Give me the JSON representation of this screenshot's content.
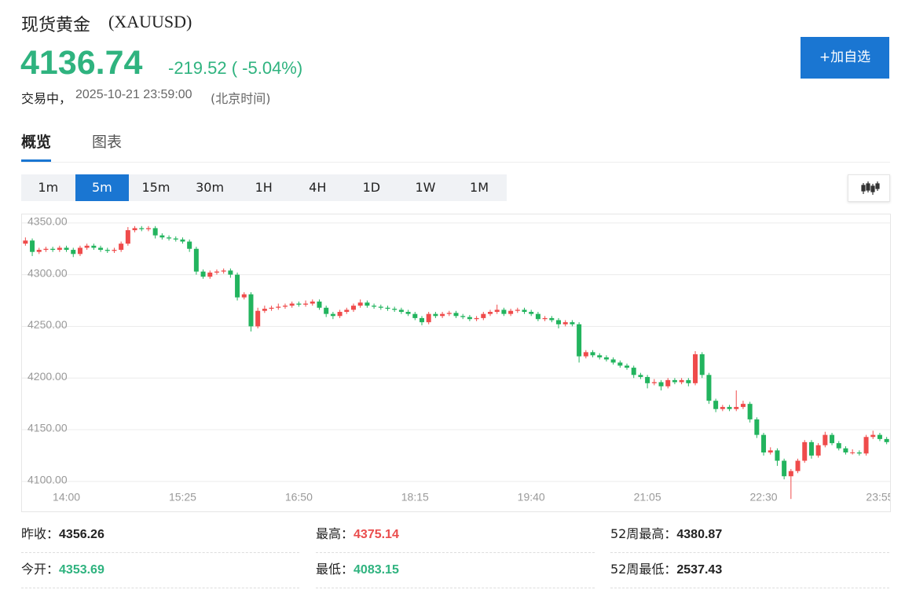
{
  "header": {
    "name": "现货黄金",
    "symbol": "(XAUUSD)",
    "price": "4136.74",
    "change": "-219.52 ( -5.04%)",
    "status": "交易中，",
    "time": "2025-10-21 23:59:00",
    "timezone": "(北京时间)",
    "button": "+加自选"
  },
  "tabs": [
    "概览",
    "图表"
  ],
  "intervals": [
    "1m",
    "5m",
    "15m",
    "30m",
    "1H",
    "4H",
    "1D",
    "1W",
    "1M"
  ],
  "stats": [
    {
      "label": "昨收：",
      "value": "4356.26",
      "color": "#222222"
    },
    {
      "label": "最高：",
      "value": "4375.14",
      "color": "#ea4d4d"
    },
    {
      "label": "52周最高：",
      "value": "4380.87",
      "color": "#222222"
    },
    {
      "label": "今开：",
      "value": "4353.69",
      "color": "#2fb37f"
    },
    {
      "label": "最低：",
      "value": "4083.15",
      "color": "#2fb37f"
    },
    {
      "label": "52周最低：",
      "value": "2537.43",
      "color": "#222222"
    }
  ],
  "chart_data": {
    "type": "candlestick",
    "up_color": "#ef4b4b",
    "down_color": "#22b45e",
    "grid": true,
    "ylim": [
      4359,
      4071
    ],
    "yticks": [
      {
        "value": 4350,
        "label": "4350.00"
      },
      {
        "value": 4300,
        "label": "4300.00"
      },
      {
        "value": 4250,
        "label": "4250.00"
      },
      {
        "value": 4200,
        "label": "4200.00"
      },
      {
        "value": 4150,
        "label": "4150.00"
      },
      {
        "value": 4100,
        "label": "4100.00"
      }
    ],
    "categories": [
      null,
      null,
      null,
      null,
      null,
      null,
      "14:00",
      null,
      null,
      null,
      null,
      null,
      null,
      null,
      null,
      null,
      null,
      null,
      null,
      null,
      null,
      null,
      null,
      "15:25",
      null,
      null,
      null,
      null,
      null,
      null,
      null,
      null,
      null,
      null,
      null,
      null,
      null,
      null,
      null,
      null,
      "16:50",
      null,
      null,
      null,
      null,
      null,
      null,
      null,
      null,
      null,
      null,
      null,
      null,
      null,
      null,
      null,
      null,
      "18:15",
      null,
      null,
      null,
      null,
      null,
      null,
      null,
      null,
      null,
      null,
      null,
      null,
      null,
      null,
      null,
      null,
      "19:40",
      null,
      null,
      null,
      null,
      null,
      null,
      null,
      null,
      null,
      null,
      null,
      null,
      null,
      null,
      null,
      null,
      "21:05",
      null,
      null,
      null,
      null,
      null,
      null,
      null,
      null,
      null,
      null,
      null,
      null,
      null,
      null,
      null,
      null,
      "22:30",
      null,
      null,
      null,
      null,
      null,
      null,
      null,
      null,
      null,
      null,
      null,
      null,
      null,
      null,
      null,
      null,
      "23:55",
      null
    ],
    "ohlc": [
      [
        4330,
        4336,
        4328,
        4333
      ],
      [
        4333,
        4335,
        4318,
        4322
      ],
      [
        4322,
        4326,
        4320,
        4324
      ],
      [
        4324,
        4327,
        4322,
        4325
      ],
      [
        4325,
        4327,
        4322,
        4324
      ],
      [
        4324,
        4328,
        4322,
        4326
      ],
      [
        4326,
        4328,
        4322,
        4324
      ],
      [
        4324,
        4326,
        4317,
        4320
      ],
      [
        4320,
        4328,
        4318,
        4326
      ],
      [
        4326,
        4330,
        4324,
        4328
      ],
      [
        4328,
        4330,
        4324,
        4326
      ],
      [
        4326,
        4328,
        4322,
        4324
      ],
      [
        4324,
        4326,
        4321,
        4323
      ],
      [
        4323,
        4326,
        4321,
        4324
      ],
      [
        4324,
        4332,
        4322,
        4330
      ],
      [
        4330,
        4346,
        4328,
        4343
      ],
      [
        4343,
        4347,
        4341,
        4345
      ],
      [
        4345,
        4347,
        4342,
        4344
      ],
      [
        4344,
        4347,
        4342,
        4345
      ],
      [
        4345,
        4347,
        4335,
        4338
      ],
      [
        4338,
        4340,
        4334,
        4336
      ],
      [
        4336,
        4338,
        4333,
        4335
      ],
      [
        4335,
        4337,
        4332,
        4334
      ],
      [
        4334,
        4336,
        4330,
        4332
      ],
      [
        4332,
        4334,
        4322,
        4325
      ],
      [
        4325,
        4327,
        4300,
        4303
      ],
      [
        4303,
        4305,
        4296,
        4298
      ],
      [
        4298,
        4304,
        4296,
        4302
      ],
      [
        4302,
        4305,
        4300,
        4303
      ],
      [
        4303,
        4306,
        4301,
        4304
      ],
      [
        4304,
        4306,
        4297,
        4300
      ],
      [
        4300,
        4302,
        4275,
        4278
      ],
      [
        4278,
        4283,
        4276,
        4281
      ],
      [
        4281,
        4283,
        4245,
        4250
      ],
      [
        4250,
        4268,
        4248,
        4265
      ],
      [
        4265,
        4270,
        4263,
        4267
      ],
      [
        4267,
        4270,
        4265,
        4268
      ],
      [
        4268,
        4272,
        4266,
        4269
      ],
      [
        4269,
        4272,
        4267,
        4270
      ],
      [
        4270,
        4274,
        4268,
        4272
      ],
      [
        4272,
        4274,
        4269,
        4271
      ],
      [
        4271,
        4275,
        4269,
        4272
      ],
      [
        4272,
        4276,
        4270,
        4274
      ],
      [
        4274,
        4276,
        4266,
        4268
      ],
      [
        4268,
        4270,
        4259,
        4262
      ],
      [
        4262,
        4264,
        4257,
        4260
      ],
      [
        4260,
        4266,
        4258,
        4264
      ],
      [
        4264,
        4268,
        4262,
        4266
      ],
      [
        4266,
        4272,
        4264,
        4270
      ],
      [
        4270,
        4276,
        4268,
        4273
      ],
      [
        4273,
        4275,
        4268,
        4270
      ],
      [
        4270,
        4272,
        4267,
        4269
      ],
      [
        4269,
        4271,
        4266,
        4268
      ],
      [
        4268,
        4270,
        4265,
        4267
      ],
      [
        4267,
        4269,
        4264,
        4266
      ],
      [
        4266,
        4268,
        4262,
        4264
      ],
      [
        4264,
        4266,
        4260,
        4262
      ],
      [
        4262,
        4264,
        4256,
        4258
      ],
      [
        4258,
        4260,
        4251,
        4254
      ],
      [
        4254,
        4264,
        4252,
        4262
      ],
      [
        4262,
        4264,
        4258,
        4260
      ],
      [
        4260,
        4264,
        4258,
        4262
      ],
      [
        4262,
        4265,
        4260,
        4263
      ],
      [
        4263,
        4265,
        4258,
        4260
      ],
      [
        4260,
        4262,
        4257,
        4259
      ],
      [
        4259,
        4261,
        4255,
        4257
      ],
      [
        4257,
        4260,
        4255,
        4258
      ],
      [
        4258,
        4264,
        4256,
        4262
      ],
      [
        4262,
        4266,
        4260,
        4264
      ],
      [
        4264,
        4271,
        4262,
        4266
      ],
      [
        4266,
        4268,
        4260,
        4262
      ],
      [
        4262,
        4267,
        4260,
        4265
      ],
      [
        4265,
        4268,
        4263,
        4266
      ],
      [
        4266,
        4268,
        4262,
        4264
      ],
      [
        4264,
        4266,
        4260,
        4262
      ],
      [
        4262,
        4264,
        4255,
        4257
      ],
      [
        4257,
        4260,
        4255,
        4258
      ],
      [
        4258,
        4260,
        4254,
        4256
      ],
      [
        4256,
        4258,
        4248,
        4252
      ],
      [
        4252,
        4256,
        4250,
        4254
      ],
      [
        4254,
        4256,
        4250,
        4252
      ],
      [
        4252,
        4254,
        4215,
        4221
      ],
      [
        4221,
        4227,
        4219,
        4225
      ],
      [
        4225,
        4227,
        4220,
        4222
      ],
      [
        4222,
        4224,
        4218,
        4220
      ],
      [
        4220,
        4222,
        4216,
        4218
      ],
      [
        4218,
        4220,
        4213,
        4215
      ],
      [
        4215,
        4217,
        4210,
        4212
      ],
      [
        4212,
        4214,
        4208,
        4210
      ],
      [
        4210,
        4212,
        4200,
        4203
      ],
      [
        4203,
        4205,
        4199,
        4201
      ],
      [
        4201,
        4203,
        4190,
        4195
      ],
      [
        4195,
        4199,
        4193,
        4196
      ],
      [
        4196,
        4198,
        4188,
        4192
      ],
      [
        4192,
        4200,
        4190,
        4198
      ],
      [
        4198,
        4200,
        4194,
        4196
      ],
      [
        4196,
        4200,
        4194,
        4198
      ],
      [
        4198,
        4200,
        4192,
        4195
      ],
      [
        4195,
        4226,
        4193,
        4223
      ],
      [
        4223,
        4225,
        4200,
        4203
      ],
      [
        4203,
        4205,
        4175,
        4178
      ],
      [
        4178,
        4180,
        4167,
        4170
      ],
      [
        4170,
        4174,
        4168,
        4172
      ],
      [
        4172,
        4174,
        4168,
        4170
      ],
      [
        4170,
        4188,
        4168,
        4172
      ],
      [
        4172,
        4178,
        4170,
        4175
      ],
      [
        4175,
        4177,
        4157,
        4160
      ],
      [
        4160,
        4162,
        4142,
        4145
      ],
      [
        4145,
        4147,
        4125,
        4128
      ],
      [
        4128,
        4133,
        4126,
        4130
      ],
      [
        4130,
        4132,
        4115,
        4120
      ],
      [
        4120,
        4122,
        4102,
        4105
      ],
      [
        4105,
        4112,
        4083,
        4110
      ],
      [
        4110,
        4122,
        4108,
        4120
      ],
      [
        4120,
        4140,
        4118,
        4138
      ],
      [
        4138,
        4140,
        4122,
        4125
      ],
      [
        4125,
        4137,
        4123,
        4135
      ],
      [
        4135,
        4148,
        4133,
        4145
      ],
      [
        4145,
        4147,
        4135,
        4137
      ],
      [
        4137,
        4139,
        4130,
        4132
      ],
      [
        4132,
        4134,
        4126,
        4128
      ],
      [
        4128,
        4131,
        4126,
        4128
      ],
      [
        4128,
        4130,
        4125,
        4127
      ],
      [
        4127,
        4145,
        4125,
        4143
      ],
      [
        4143,
        4149,
        4141,
        4145
      ],
      [
        4145,
        4147,
        4139,
        4141
      ],
      [
        4141,
        4143,
        4136,
        4138
      ]
    ]
  }
}
